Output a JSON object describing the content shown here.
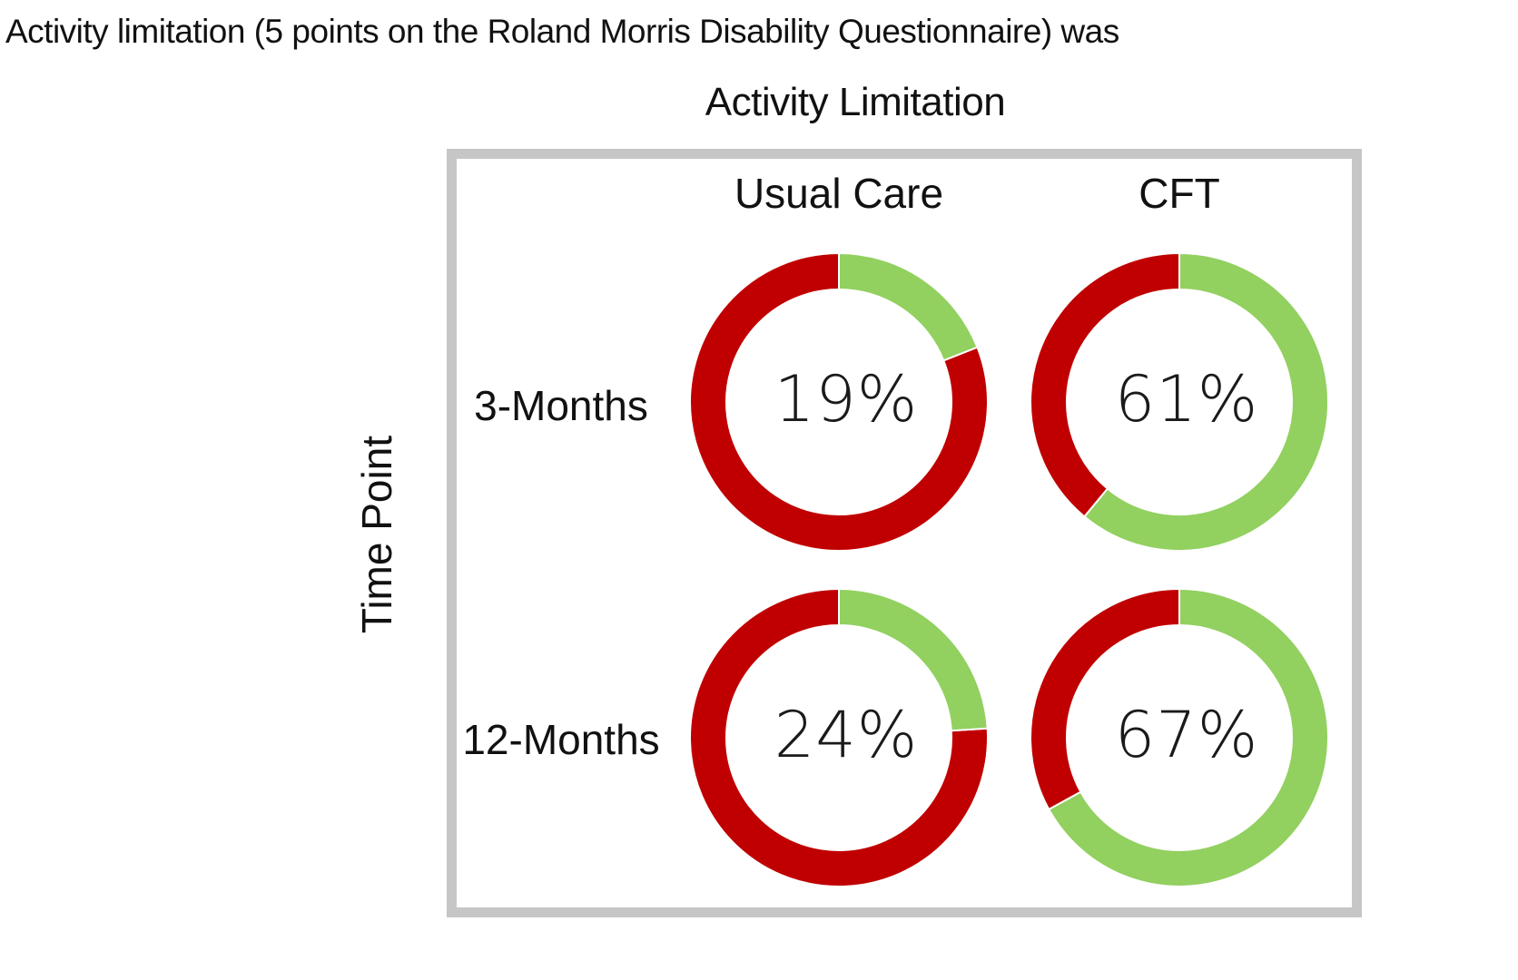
{
  "intro_text": "Activity limitation (5 points on the Roland Morris Disability Questionnaire) was",
  "chart_data": {
    "type": "donut-grid",
    "title": "Activity Limitation",
    "ylabel": "Time Point",
    "columns": [
      "Usual Care",
      "CFT"
    ],
    "rows": [
      "3-Months",
      "12-Months"
    ],
    "cells": [
      {
        "row": "3-Months",
        "column": "Usual Care",
        "value": 19,
        "label": "19%"
      },
      {
        "row": "3-Months",
        "column": "CFT",
        "value": 61,
        "label": "61%"
      },
      {
        "row": "12-Months",
        "column": "Usual Care",
        "value": 24,
        "label": "24%"
      },
      {
        "row": "12-Months",
        "column": "CFT",
        "value": 67,
        "label": "67%"
      }
    ],
    "colors": {
      "achieved": "#92d060",
      "remainder": "#c00000",
      "frame": "#c6c6c6"
    }
  }
}
